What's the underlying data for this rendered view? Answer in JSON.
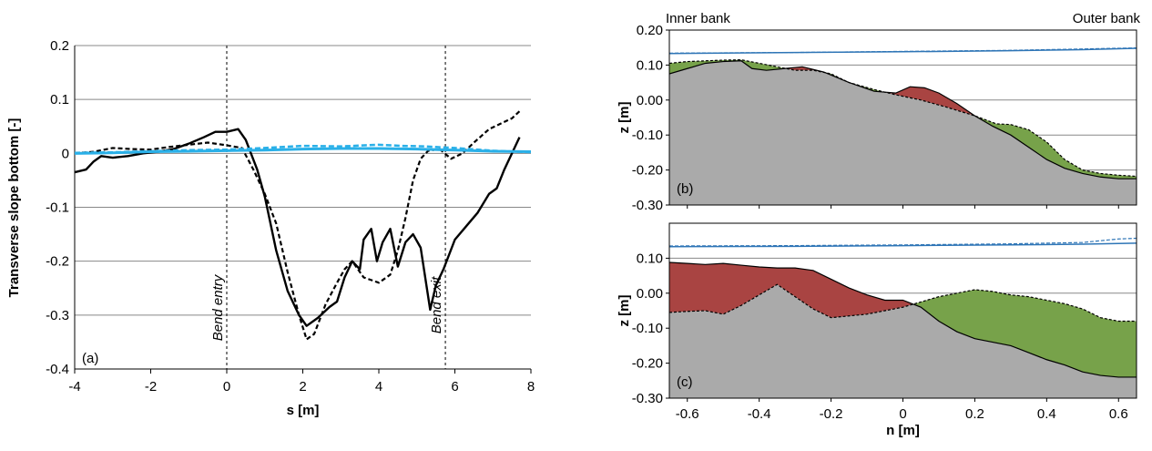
{
  "chart_data": [
    {
      "id": "a",
      "type": "line",
      "panel_label": "(a)",
      "xlabel": "s [m]",
      "ylabel": "Transverse slope bottom  [-]",
      "xlim": [
        -4,
        8
      ],
      "ylim": [
        -0.4,
        0.2
      ],
      "xticks": [
        "-4",
        "-2",
        "0",
        "2",
        "4",
        "6",
        "8"
      ],
      "yticks": [
        "-0.4",
        "-0.3",
        "-0.2",
        "-0.1",
        "0",
        "0.1",
        "0.2"
      ],
      "grid": "horizontal",
      "annotations": [
        {
          "text": "Bend entry",
          "x": 0
        },
        {
          "text": "Bend exit",
          "x": 5.75
        }
      ],
      "series": [
        {
          "style": "black-solid",
          "x": [
            -4.0,
            -3.7,
            -3.5,
            -3.3,
            -3.0,
            -2.6,
            -2.2,
            -1.8,
            -1.4,
            -1.0,
            -0.6,
            -0.3,
            0.0,
            0.3,
            0.5,
            0.8,
            1.0,
            1.3,
            1.6,
            1.9,
            2.1,
            2.4,
            2.7,
            2.9,
            3.1,
            3.3,
            3.5,
            3.6,
            3.8,
            3.95,
            4.1,
            4.3,
            4.5,
            4.7,
            4.9,
            5.1,
            5.35,
            5.5,
            5.7,
            6.0,
            6.3,
            6.6,
            6.9,
            7.1,
            7.3,
            7.5,
            7.7
          ],
          "y": [
            -0.035,
            -0.03,
            -0.015,
            -0.005,
            -0.008,
            -0.005,
            0.0,
            0.003,
            0.008,
            0.018,
            0.03,
            0.04,
            0.04,
            0.045,
            0.025,
            -0.03,
            -0.08,
            -0.18,
            -0.255,
            -0.3,
            -0.32,
            -0.305,
            -0.285,
            -0.275,
            -0.23,
            -0.2,
            -0.215,
            -0.16,
            -0.14,
            -0.2,
            -0.165,
            -0.14,
            -0.21,
            -0.165,
            -0.15,
            -0.175,
            -0.29,
            -0.245,
            -0.215,
            -0.16,
            -0.135,
            -0.11,
            -0.075,
            -0.065,
            -0.03,
            0.0,
            0.03
          ]
        },
        {
          "style": "black-dashed",
          "x": [
            -4.0,
            -3.5,
            -3.0,
            -2.5,
            -2.0,
            -1.5,
            -1.0,
            -0.5,
            0.0,
            0.4,
            0.7,
            1.0,
            1.3,
            1.6,
            1.9,
            2.1,
            2.3,
            2.6,
            2.9,
            3.1,
            3.3,
            3.6,
            4.0,
            4.3,
            4.5,
            4.7,
            4.9,
            5.1,
            5.3,
            5.6,
            5.9,
            6.2,
            6.5,
            6.9,
            7.2,
            7.5,
            7.7
          ],
          "y": [
            0.0,
            0.003,
            0.01,
            0.008,
            0.007,
            0.012,
            0.016,
            0.02,
            0.015,
            0.01,
            -0.03,
            -0.075,
            -0.13,
            -0.22,
            -0.3,
            -0.345,
            -0.335,
            -0.28,
            -0.24,
            -0.215,
            -0.2,
            -0.23,
            -0.24,
            -0.225,
            -0.18,
            -0.12,
            -0.05,
            -0.01,
            0.005,
            0.008,
            -0.01,
            0.0,
            0.02,
            0.045,
            0.055,
            0.065,
            0.078
          ]
        },
        {
          "style": "blue-solid",
          "x": [
            -4.0,
            -3.0,
            -2.0,
            -1.0,
            0.0,
            1.0,
            2.0,
            3.0,
            4.0,
            5.0,
            6.0,
            7.0,
            8.0
          ],
          "y": [
            0.0,
            0.001,
            0.003,
            0.004,
            0.005,
            0.006,
            0.008,
            0.009,
            0.009,
            0.008,
            0.006,
            0.004,
            0.003
          ]
        },
        {
          "style": "blue-dashed",
          "x": [
            -4.0,
            -3.0,
            -2.0,
            -1.0,
            0.0,
            1.0,
            2.0,
            3.0,
            4.0,
            4.6,
            5.2,
            6.0,
            7.0,
            8.0
          ],
          "y": [
            0.001,
            0.002,
            0.004,
            0.006,
            0.007,
            0.01,
            0.014,
            0.013,
            0.016,
            0.014,
            0.013,
            0.01,
            0.005,
            0.002
          ]
        }
      ]
    },
    {
      "id": "b",
      "type": "area",
      "panel_label": "(b)",
      "xlabel": "",
      "ylabel": "z [m]",
      "xlim": [
        -0.65,
        0.65
      ],
      "ylim": [
        -0.3,
        0.2
      ],
      "yticks": [
        "-0.30",
        "-0.20",
        "-0.10",
        "0.00",
        "0.10",
        "0.20"
      ],
      "grid": "horizontal",
      "top_left_label": "Inner bank",
      "top_right_label": "Outer bank",
      "water_solid": {
        "x": [
          -0.65,
          -0.3,
          0.0,
          0.3,
          0.5,
          0.65
        ],
        "y": [
          0.133,
          0.136,
          0.138,
          0.141,
          0.144,
          0.148
        ]
      },
      "water_dashed": {
        "x": [
          -0.65,
          -0.3,
          0.0,
          0.3,
          0.5,
          0.65
        ],
        "y": [
          0.134,
          0.136,
          0.139,
          0.142,
          0.146,
          0.149
        ]
      },
      "bed_solid": {
        "x": [
          -0.65,
          -0.6,
          -0.55,
          -0.5,
          -0.45,
          -0.42,
          -0.38,
          -0.33,
          -0.28,
          -0.22,
          -0.15,
          -0.08,
          -0.02,
          0.02,
          0.06,
          0.1,
          0.15,
          0.2,
          0.25,
          0.3,
          0.35,
          0.4,
          0.45,
          0.5,
          0.55,
          0.6,
          0.65
        ],
        "y": [
          0.075,
          0.09,
          0.105,
          0.11,
          0.112,
          0.09,
          0.085,
          0.09,
          0.095,
          0.08,
          0.05,
          0.025,
          0.02,
          0.038,
          0.035,
          0.02,
          -0.01,
          -0.045,
          -0.075,
          -0.1,
          -0.135,
          -0.17,
          -0.195,
          -0.21,
          -0.22,
          -0.225,
          -0.225
        ]
      },
      "bed_dashed": {
        "x": [
          -0.65,
          -0.6,
          -0.55,
          -0.5,
          -0.45,
          -0.4,
          -0.35,
          -0.3,
          -0.25,
          -0.2,
          -0.15,
          -0.08,
          -0.02,
          0.05,
          0.12,
          0.2,
          0.26,
          0.3,
          0.35,
          0.4,
          0.45,
          0.5,
          0.55,
          0.6,
          0.65
        ],
        "y": [
          0.105,
          0.11,
          0.112,
          0.114,
          0.115,
          0.105,
          0.095,
          0.085,
          0.085,
          0.075,
          0.05,
          0.03,
          0.015,
          0.0,
          -0.02,
          -0.045,
          -0.068,
          -0.07,
          -0.085,
          -0.12,
          -0.17,
          -0.2,
          -0.21,
          -0.215,
          -0.218
        ]
      }
    },
    {
      "id": "c",
      "type": "area",
      "panel_label": "(c)",
      "xlabel": "n [m]",
      "ylabel": "z [m]",
      "xlim": [
        -0.65,
        0.65
      ],
      "ylim": [
        -0.3,
        0.2
      ],
      "xticks": [
        "-0.6",
        "-0.4",
        "-0.2",
        "0",
        "0.2",
        "0.4",
        "0.6"
      ],
      "yticks": [
        "-0.30",
        "-0.20",
        "-0.10",
        "0.00",
        "0.10"
      ],
      "grid": "horizontal",
      "water_solid": {
        "x": [
          -0.65,
          -0.3,
          0.0,
          0.3,
          0.5,
          0.65
        ],
        "y": [
          0.133,
          0.134,
          0.136,
          0.138,
          0.14,
          0.143
        ]
      },
      "water_dashed": {
        "x": [
          -0.65,
          -0.3,
          0.0,
          0.3,
          0.5,
          0.6,
          0.65
        ],
        "y": [
          0.135,
          0.136,
          0.138,
          0.141,
          0.145,
          0.155,
          0.157
        ]
      },
      "bed_solid": {
        "x": [
          -0.65,
          -0.6,
          -0.55,
          -0.5,
          -0.45,
          -0.4,
          -0.35,
          -0.3,
          -0.25,
          -0.2,
          -0.15,
          -0.1,
          -0.05,
          0.0,
          0.05,
          0.1,
          0.15,
          0.2,
          0.25,
          0.3,
          0.35,
          0.4,
          0.45,
          0.5,
          0.55,
          0.6,
          0.65
        ],
        "y": [
          0.088,
          0.085,
          0.082,
          0.085,
          0.08,
          0.075,
          0.072,
          0.072,
          0.065,
          0.04,
          0.015,
          -0.005,
          -0.02,
          -0.02,
          -0.04,
          -0.08,
          -0.11,
          -0.13,
          -0.14,
          -0.15,
          -0.17,
          -0.19,
          -0.205,
          -0.225,
          -0.235,
          -0.24,
          -0.24
        ]
      },
      "bed_dashed": {
        "x": [
          -0.65,
          -0.6,
          -0.55,
          -0.5,
          -0.45,
          -0.4,
          -0.35,
          -0.3,
          -0.25,
          -0.2,
          -0.15,
          -0.1,
          -0.05,
          0.0,
          0.05,
          0.1,
          0.15,
          0.2,
          0.25,
          0.3,
          0.35,
          0.4,
          0.45,
          0.5,
          0.55,
          0.6,
          0.65
        ],
        "y": [
          -0.055,
          -0.052,
          -0.05,
          -0.06,
          -0.035,
          -0.005,
          0.025,
          -0.01,
          -0.045,
          -0.07,
          -0.065,
          -0.06,
          -0.05,
          -0.04,
          -0.025,
          -0.01,
          0.0,
          0.01,
          0.005,
          -0.005,
          -0.01,
          -0.02,
          -0.03,
          -0.045,
          -0.07,
          -0.08,
          -0.08
        ]
      }
    }
  ]
}
